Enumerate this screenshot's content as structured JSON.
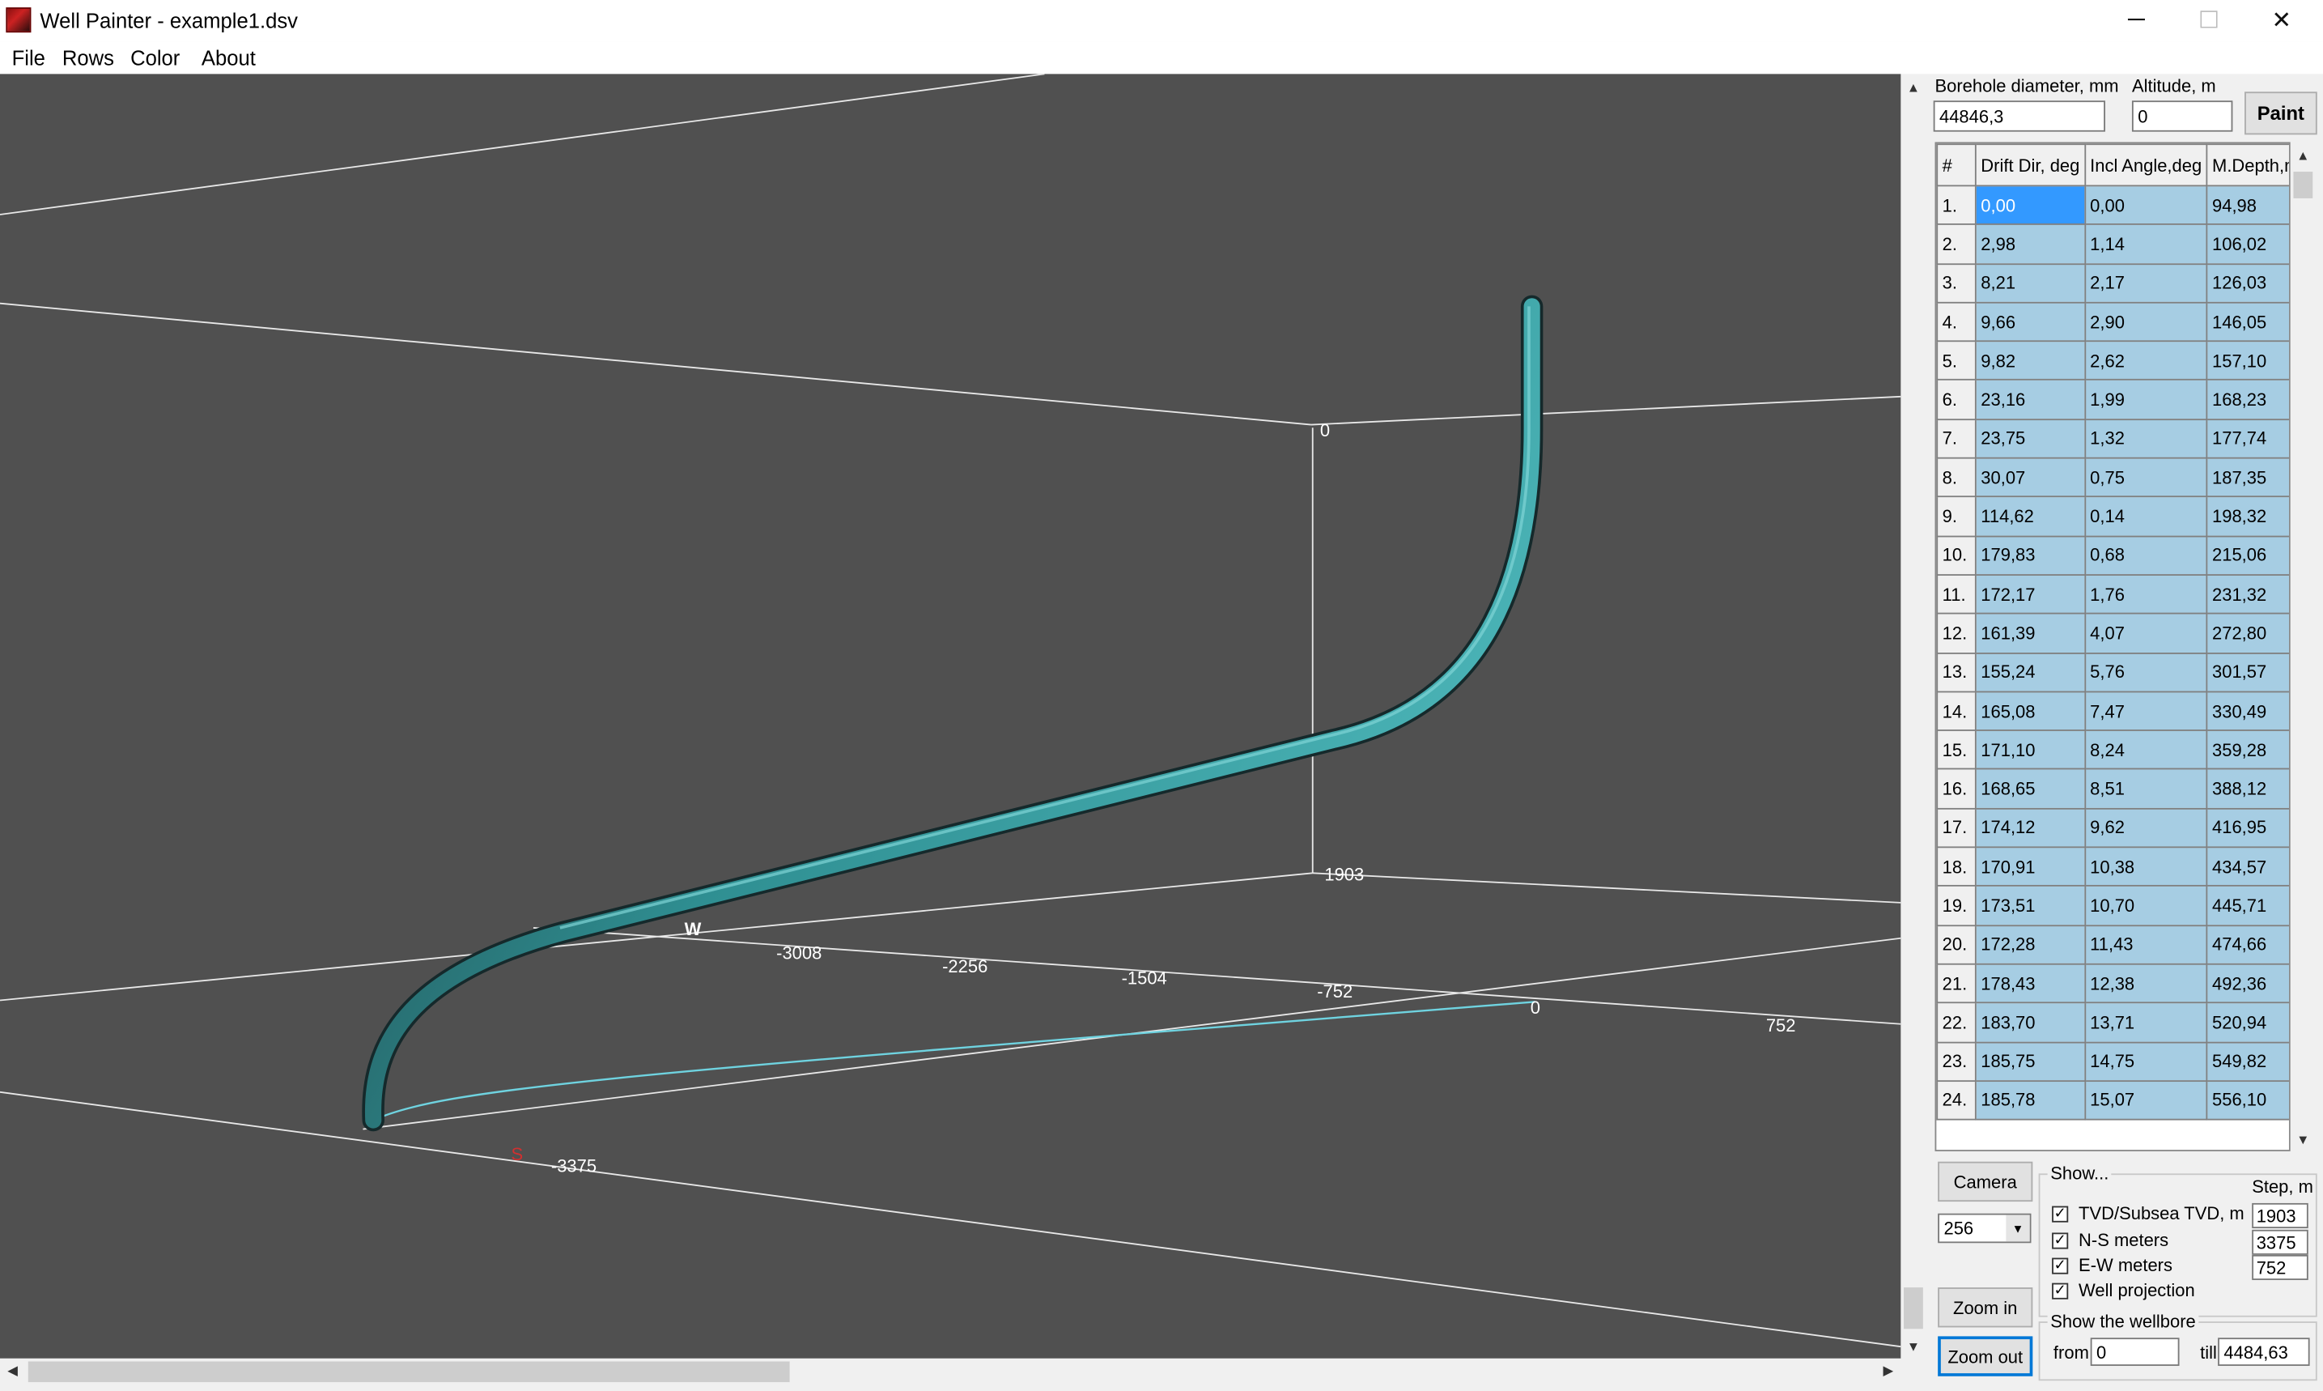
{
  "window": {
    "title": "Well Painter - example1.dsv",
    "minimize": "─",
    "maximize": "☐",
    "close": "✕"
  },
  "menu": [
    "File",
    "Rows",
    "Color",
    "About"
  ],
  "scene": {
    "axis_labels": {
      "top_zero": "0",
      "tvd_step": "1903",
      "west": "W",
      "south": "S",
      "ns_step": "-3375",
      "ew_origin": "0",
      "ew_plus": "752",
      "ew_ticks": [
        "-3008",
        "-2256",
        "-1504",
        "-752"
      ]
    },
    "well_color": "#2f8f92",
    "projection_color": "#6fd3e0"
  },
  "controls": {
    "borehole_label": "Borehole diameter, mm",
    "borehole_value": "44846,3",
    "altitude_label": "Altitude, m",
    "altitude_value": "0",
    "paint_button": "Paint"
  },
  "table": {
    "headers": [
      "#",
      "Drift Dir, deg",
      "Incl Angle,deg",
      "M.Depth,m"
    ],
    "rows": [
      [
        "1.",
        "0,00",
        "0,00",
        "94,98"
      ],
      [
        "2.",
        "2,98",
        "1,14",
        "106,02"
      ],
      [
        "3.",
        "8,21",
        "2,17",
        "126,03"
      ],
      [
        "4.",
        "9,66",
        "2,90",
        "146,05"
      ],
      [
        "5.",
        "9,82",
        "2,62",
        "157,10"
      ],
      [
        "6.",
        "23,16",
        "1,99",
        "168,23"
      ],
      [
        "7.",
        "23,75",
        "1,32",
        "177,74"
      ],
      [
        "8.",
        "30,07",
        "0,75",
        "187,35"
      ],
      [
        "9.",
        "114,62",
        "0,14",
        "198,32"
      ],
      [
        "10.",
        "179,83",
        "0,68",
        "215,06"
      ],
      [
        "11.",
        "172,17",
        "1,76",
        "231,32"
      ],
      [
        "12.",
        "161,39",
        "4,07",
        "272,80"
      ],
      [
        "13.",
        "155,24",
        "5,76",
        "301,57"
      ],
      [
        "14.",
        "165,08",
        "7,47",
        "330,49"
      ],
      [
        "15.",
        "171,10",
        "8,24",
        "359,28"
      ],
      [
        "16.",
        "168,65",
        "8,51",
        "388,12"
      ],
      [
        "17.",
        "174,12",
        "9,62",
        "416,95"
      ],
      [
        "18.",
        "170,91",
        "10,38",
        "434,57"
      ],
      [
        "19.",
        "173,51",
        "10,70",
        "445,71"
      ],
      [
        "20.",
        "172,28",
        "11,43",
        "474,66"
      ],
      [
        "21.",
        "178,43",
        "12,38",
        "492,36"
      ],
      [
        "22.",
        "183,70",
        "13,71",
        "520,94"
      ],
      [
        "23.",
        "185,75",
        "14,75",
        "549,82"
      ],
      [
        "24.",
        "185,78",
        "15,07",
        "556,10"
      ]
    ]
  },
  "camera": {
    "button": "Camera",
    "select_value": "256",
    "zoom_in": "Zoom in",
    "zoom_out": "Zoom out"
  },
  "show": {
    "title": "Show...",
    "step_label": "Step, m",
    "items": [
      {
        "label": "TVD/Subsea TVD, m",
        "checked": true,
        "step": "1903"
      },
      {
        "label": "N-S meters",
        "checked": true,
        "step": "3375"
      },
      {
        "label": "E-W meters",
        "checked": true,
        "step": "752"
      },
      {
        "label": "Well projection",
        "checked": true,
        "step": ""
      }
    ]
  },
  "wellbore": {
    "title": "Show the wellbore",
    "from_label": "from",
    "from_value": "0",
    "till_label": "till",
    "till_value": "4484,63"
  }
}
